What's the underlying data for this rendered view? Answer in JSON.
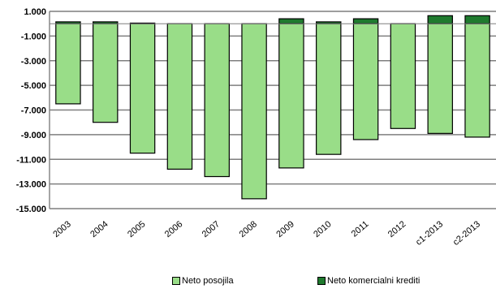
{
  "chart_data": {
    "type": "bar",
    "stacked": true,
    "categories": [
      "2003",
      "2004",
      "2005",
      "2006",
      "2007",
      "2008",
      "2009",
      "2010",
      "2011",
      "2012",
      "c1-2013",
      "c2-2013"
    ],
    "series": [
      {
        "name": "Neto posojila",
        "color": "#99dd88",
        "values": [
          -6500,
          -8000,
          -10500,
          -11800,
          -12400,
          -14200,
          -11700,
          -10600,
          -9400,
          -8500,
          -8900,
          -9200
        ]
      },
      {
        "name": "Neto komercialni krediti",
        "color": "#1f7a2e",
        "values": [
          150,
          150,
          50,
          0,
          0,
          0,
          400,
          150,
          400,
          0,
          650,
          650
        ]
      }
    ],
    "ylim": [
      -15000,
      1000
    ],
    "yticks": [
      "1.000",
      "-1.000",
      "-3.000",
      "-5.000",
      "-7.000",
      "-9.000",
      "-11.000",
      "-13.000",
      "-15.000"
    ],
    "ytick_values": [
      1000,
      -1000,
      -3000,
      -5000,
      -7000,
      -9000,
      -11000,
      -13000,
      -15000
    ],
    "grid": true,
    "legend_position": "bottom"
  }
}
